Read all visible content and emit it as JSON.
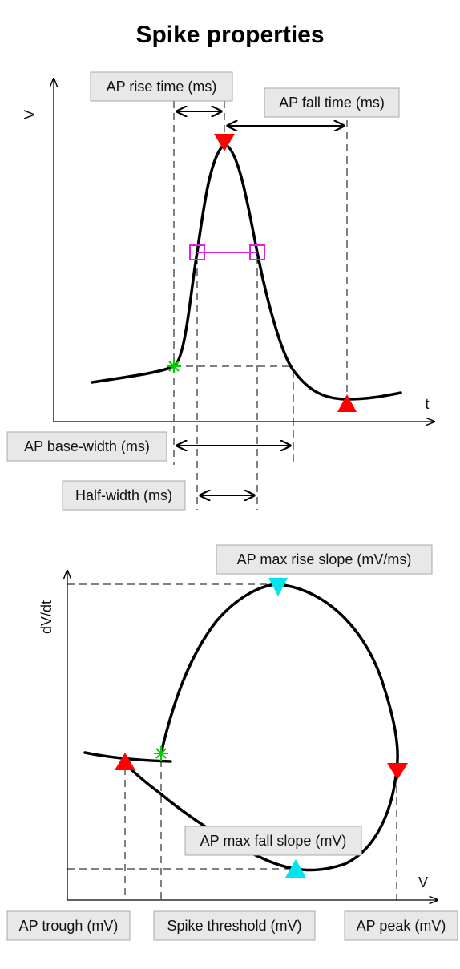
{
  "title": "Spike properties",
  "top_panel": {
    "y_axis_label": "V",
    "x_axis_label": "t",
    "labels": {
      "rise_time": "AP rise time (ms)",
      "fall_time": "AP fall time (ms)",
      "base_width": "AP base-width (ms)",
      "half_width": "Half-width (ms)"
    }
  },
  "bottom_panel": {
    "y_axis_label": "dV/dt",
    "x_axis_label": "V",
    "labels": {
      "max_rise_slope": "AP max rise slope (mV/ms)",
      "max_fall_slope": "AP max fall slope (mV)",
      "trough": "AP trough (mV)",
      "threshold": "Spike threshold (mV)",
      "peak": "AP peak (mV)"
    }
  },
  "colors": {
    "peak_marker": "#ff0000",
    "trough_marker": "#ff0000",
    "slope_marker": "#00e5ee",
    "threshold_marker": "#00cc00",
    "half_width_marker": "#e020e0",
    "curve": "#000000"
  }
}
